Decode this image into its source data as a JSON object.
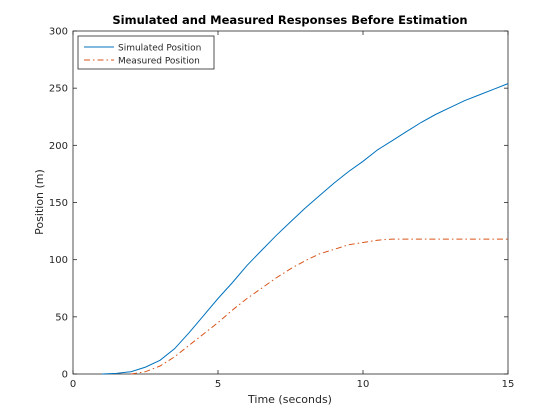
{
  "chart_data": {
    "type": "line",
    "title": "Simulated and Measured Responses Before Estimation",
    "xlabel": "Time (seconds)",
    "ylabel": "Position (m)",
    "xlim": [
      0,
      15
    ],
    "ylim": [
      0,
      300
    ],
    "xticks": [
      0,
      5,
      10,
      15
    ],
    "yticks": [
      0,
      50,
      100,
      150,
      200,
      250,
      300
    ],
    "grid": false,
    "legend_position": "top-left",
    "series": [
      {
        "name": "Simulated Position",
        "color": "#0072bd",
        "style": "solid",
        "x": [
          1.0,
          1.5,
          2.0,
          2.5,
          3.0,
          3.5,
          4.0,
          4.5,
          5.0,
          5.5,
          6.0,
          6.5,
          7.0,
          7.5,
          8.0,
          8.5,
          9.0,
          9.5,
          10.0,
          10.5,
          11.0,
          11.5,
          12.0,
          12.5,
          13.0,
          13.5,
          14.0,
          14.5,
          15.0
        ],
        "y": [
          0,
          0.5,
          2,
          6,
          12,
          22,
          36,
          51,
          66,
          80,
          95,
          108,
          121,
          133,
          145,
          156,
          167,
          177,
          186,
          196,
          204,
          212,
          220,
          227,
          233,
          239,
          244,
          249,
          254
        ]
      },
      {
        "name": "Measured Position",
        "color": "#d95319",
        "style": "dashdot",
        "x": [
          2.0,
          2.5,
          3.0,
          3.5,
          4.0,
          4.5,
          5.0,
          5.5,
          6.0,
          6.5,
          7.0,
          7.5,
          8.0,
          8.5,
          9.0,
          9.5,
          10.0,
          10.5,
          11.0,
          11.5,
          12.0,
          13.0,
          14.0,
          15.0
        ],
        "y": [
          0,
          2,
          7,
          15,
          25,
          35,
          45,
          56,
          66,
          75,
          84,
          92,
          99,
          105,
          109,
          113,
          115,
          117,
          118,
          118,
          118,
          118,
          118,
          118
        ]
      }
    ]
  }
}
